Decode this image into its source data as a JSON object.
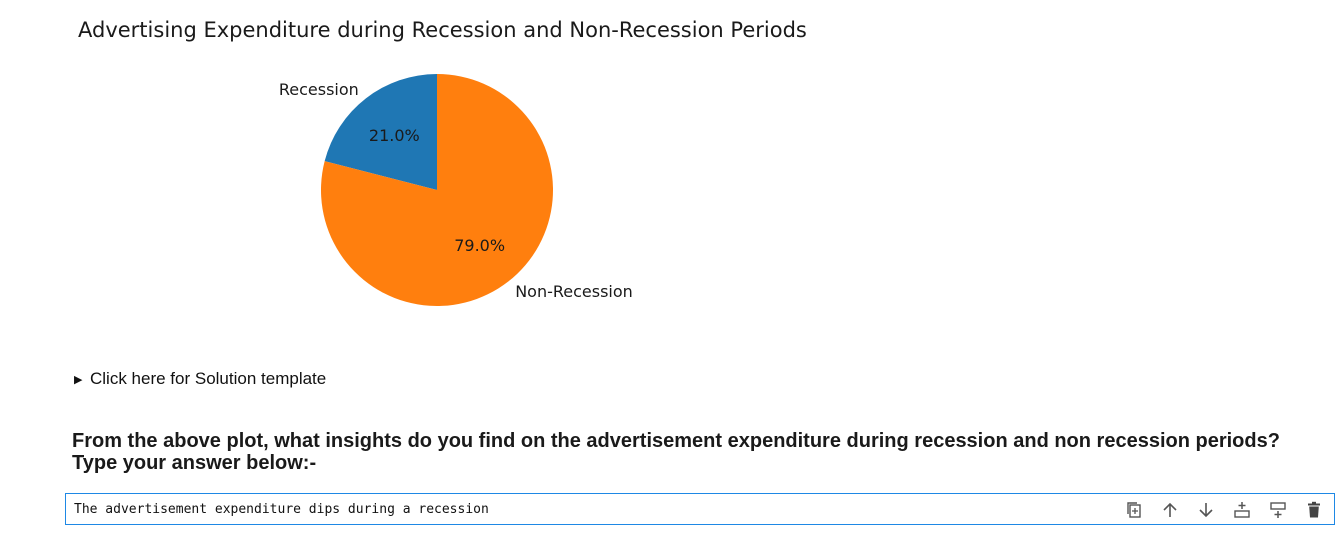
{
  "chart_data": {
    "type": "pie",
    "title": "Advertising Expenditure during Recession and Non-Recession Periods",
    "slices": [
      {
        "label": "Recession",
        "value": 21.0,
        "pct_label": "21.0%",
        "color": "#1f77b4"
      },
      {
        "label": "Non-Recession",
        "value": 79.0,
        "pct_label": "79.0%",
        "color": "#ff7f0e"
      }
    ],
    "start_angle_deg": 90,
    "direction": "counterclockwise"
  },
  "details": {
    "summary": "Click here for Solution template"
  },
  "question": {
    "line1": "From the above plot, what insights do you find on the advertisement expenditure during recession and non recession periods?",
    "line2": "Type your answer below:-"
  },
  "cell": {
    "text": "The advertisement expenditure dips during a recession"
  },
  "toolbar": {
    "icons": [
      "duplicate-icon",
      "move-up-icon",
      "move-down-icon",
      "insert-above-icon",
      "insert-below-icon",
      "delete-icon"
    ]
  }
}
